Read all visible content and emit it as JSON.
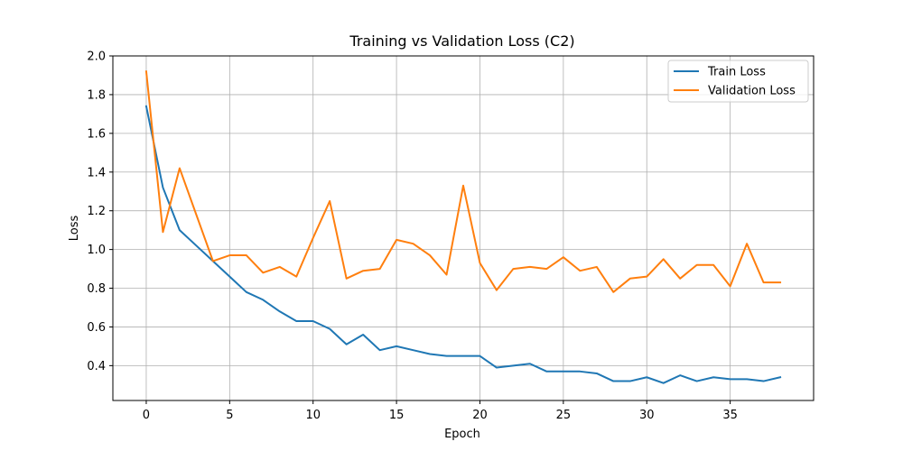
{
  "chart_data": {
    "type": "line",
    "title": "Training vs Validation Loss (C2)",
    "xlabel": "Epoch",
    "ylabel": "Loss",
    "xlim": [
      -2.0,
      40.0
    ],
    "ylim": [
      0.22,
      2.0
    ],
    "xticks": [
      0,
      5,
      10,
      15,
      20,
      25,
      30,
      35
    ],
    "yticks": [
      0.4,
      0.6,
      0.8,
      1.0,
      1.2,
      1.4,
      1.6,
      1.8,
      2.0
    ],
    "xtick_labels": [
      "0",
      "5",
      "10",
      "15",
      "20",
      "25",
      "30",
      "35"
    ],
    "ytick_labels": [
      "0.4",
      "0.6",
      "0.8",
      "1.0",
      "1.2",
      "1.4",
      "1.6",
      "1.8",
      "2.0"
    ],
    "grid": true,
    "legend_position": "top-right",
    "x": [
      0,
      1,
      2,
      3,
      4,
      5,
      6,
      7,
      8,
      9,
      10,
      11,
      12,
      13,
      14,
      15,
      16,
      17,
      18,
      19,
      20,
      21,
      22,
      23,
      24,
      25,
      26,
      27,
      28,
      29,
      30,
      31,
      32,
      33,
      34,
      35,
      36,
      37,
      38
    ],
    "series": [
      {
        "name": "Train Loss",
        "color": "#1f77b4",
        "values": [
          1.74,
          1.32,
          1.1,
          1.02,
          0.94,
          0.86,
          0.78,
          0.74,
          0.68,
          0.63,
          0.63,
          0.59,
          0.51,
          0.56,
          0.48,
          0.5,
          0.48,
          0.46,
          0.45,
          0.45,
          0.45,
          0.39,
          0.4,
          0.41,
          0.37,
          0.37,
          0.37,
          0.36,
          0.32,
          0.32,
          0.34,
          0.31,
          0.35,
          0.32,
          0.34,
          0.33,
          0.33,
          0.32,
          0.34
        ]
      },
      {
        "name": "Validation Loss",
        "color": "#ff7f0e",
        "values": [
          1.92,
          1.09,
          1.42,
          1.18,
          0.94,
          0.97,
          0.97,
          0.88,
          0.91,
          0.86,
          1.06,
          1.25,
          0.85,
          0.89,
          0.9,
          1.05,
          1.03,
          0.97,
          0.87,
          1.33,
          0.93,
          0.79,
          0.9,
          0.91,
          0.9,
          0.96,
          0.89,
          0.91,
          0.78,
          0.85,
          0.86,
          0.95,
          0.85,
          0.92,
          0.92,
          0.81,
          1.03,
          0.83,
          0.83
        ]
      }
    ]
  }
}
